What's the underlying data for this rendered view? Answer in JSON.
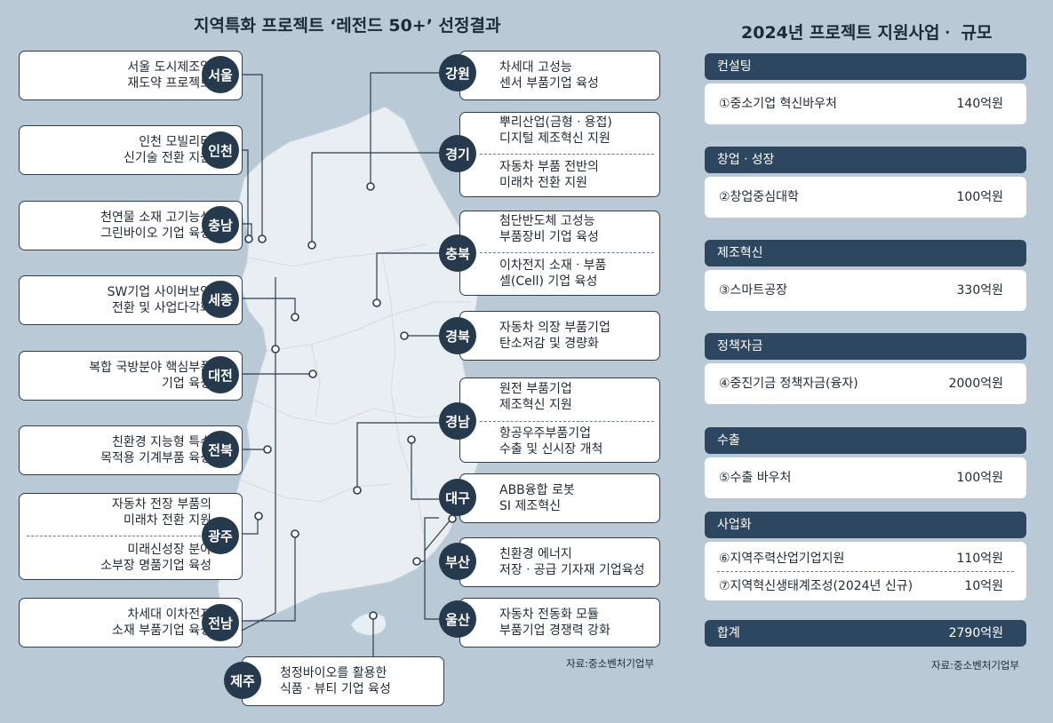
{
  "left_title": "지역특화 프로젝트 ‘레전드 50+’ 선정결과",
  "right_title": "2024년 프로젝트 지원사업ㆍ 규모",
  "regions_left": [
    {
      "badge": "서울",
      "lines": [
        "서울 도시제조업",
        "재도약 프로젝트"
      ]
    },
    {
      "badge": "인천",
      "lines": [
        "인천 모빌리티",
        "신기술 전환 지원"
      ]
    },
    {
      "badge": "충남",
      "lines": [
        "천연물 소재 고기능성",
        "그린바이오 기업 육성"
      ]
    },
    {
      "badge": "세종",
      "lines": [
        "SW기업 사이버보안",
        "전환 및 사업다각화"
      ]
    },
    {
      "badge": "대전",
      "lines": [
        "복합 국방분야 핵심부품",
        "기업 육성"
      ]
    },
    {
      "badge": "전북",
      "lines": [
        "친환경 지능형 특수",
        "목적용 기계부품 육성"
      ]
    },
    {
      "badge": "광주",
      "lines": [
        "자동차 전장 부품의",
        "미래차 전환 지원",
        "미래신성장 분야",
        "소부장 명품기업 육성"
      ]
    },
    {
      "badge": "전남",
      "lines": [
        "차세대 이차전지",
        "소재 부품기업 육성"
      ]
    }
  ],
  "regions_right": [
    {
      "badge": "강원",
      "lines": [
        "차세대 고성능",
        "센서 부품기업 육성"
      ]
    },
    {
      "badge": "경기",
      "lines": [
        "뿌리산업(금형ㆍ용접)",
        "디지털 제조혁신 지원",
        "자동차 부품 전반의",
        "미래차 전환 지원"
      ]
    },
    {
      "badge": "충북",
      "lines": [
        "첨단반도체 고성능",
        "부품장비 기업 육성",
        "이차전지 소재ㆍ부품",
        "셀(Cell) 기업 육성"
      ]
    },
    {
      "badge": "경북",
      "lines": [
        "자동차 의장 부품기업",
        "탄소저감 및 경량화"
      ]
    },
    {
      "badge": "경남",
      "lines": [
        "원전 부품기업",
        "제조혁신 지원",
        "항공우주부품기업",
        "수출 및 신시장 개척"
      ]
    },
    {
      "badge": "대구",
      "lines": [
        "ABB융합 로봇",
        "SI 제조혁신"
      ]
    },
    {
      "badge": "부산",
      "lines": [
        "친환경 에너지",
        "저장ㆍ공급 기자재 기업육성"
      ]
    },
    {
      "badge": "울산",
      "lines": [
        "자동차 전동화 모듈",
        "부품기업 경쟁력 강화"
      ]
    }
  ],
  "jeju": {
    "badge": "제주",
    "lines": [
      "청정바이오를 활용한",
      "식품ㆍ뷰티 기업 육성"
    ]
  },
  "source_left": "자료:중소벤처기업부",
  "source_right": "자료:중소벤처기업부",
  "support": [
    {
      "category": "컨설팅",
      "items": [
        {
          "name": "①중소기업 혁신바우처",
          "amount": "140억원"
        }
      ]
    },
    {
      "category": "창업ㆍ성장",
      "items": [
        {
          "name": "②창업중심대학",
          "amount": "100억원"
        }
      ]
    },
    {
      "category": "제조혁신",
      "items": [
        {
          "name": "③스마트공장",
          "amount": "330억원"
        }
      ]
    },
    {
      "category": "정책자금",
      "items": [
        {
          "name": "④중진기금 정책자금(융자)",
          "amount": "2000억원"
        }
      ]
    },
    {
      "category": "수출",
      "items": [
        {
          "name": "⑤수출 바우처",
          "amount": "100억원"
        }
      ]
    },
    {
      "category": "사업화",
      "items": [
        {
          "name": "⑥지역주력산업기업지원",
          "amount": "110억원"
        },
        {
          "name": "⑦지역혁신생태계조성(2024년 신규)",
          "amount": "10억원"
        }
      ]
    }
  ],
  "total": {
    "label": "합계",
    "amount": "2790억원"
  },
  "colors": {
    "background": "#b9cad6",
    "map_fill": "#e8eef2",
    "badge": "#263a4e",
    "category_bar": "#2e4760"
  }
}
